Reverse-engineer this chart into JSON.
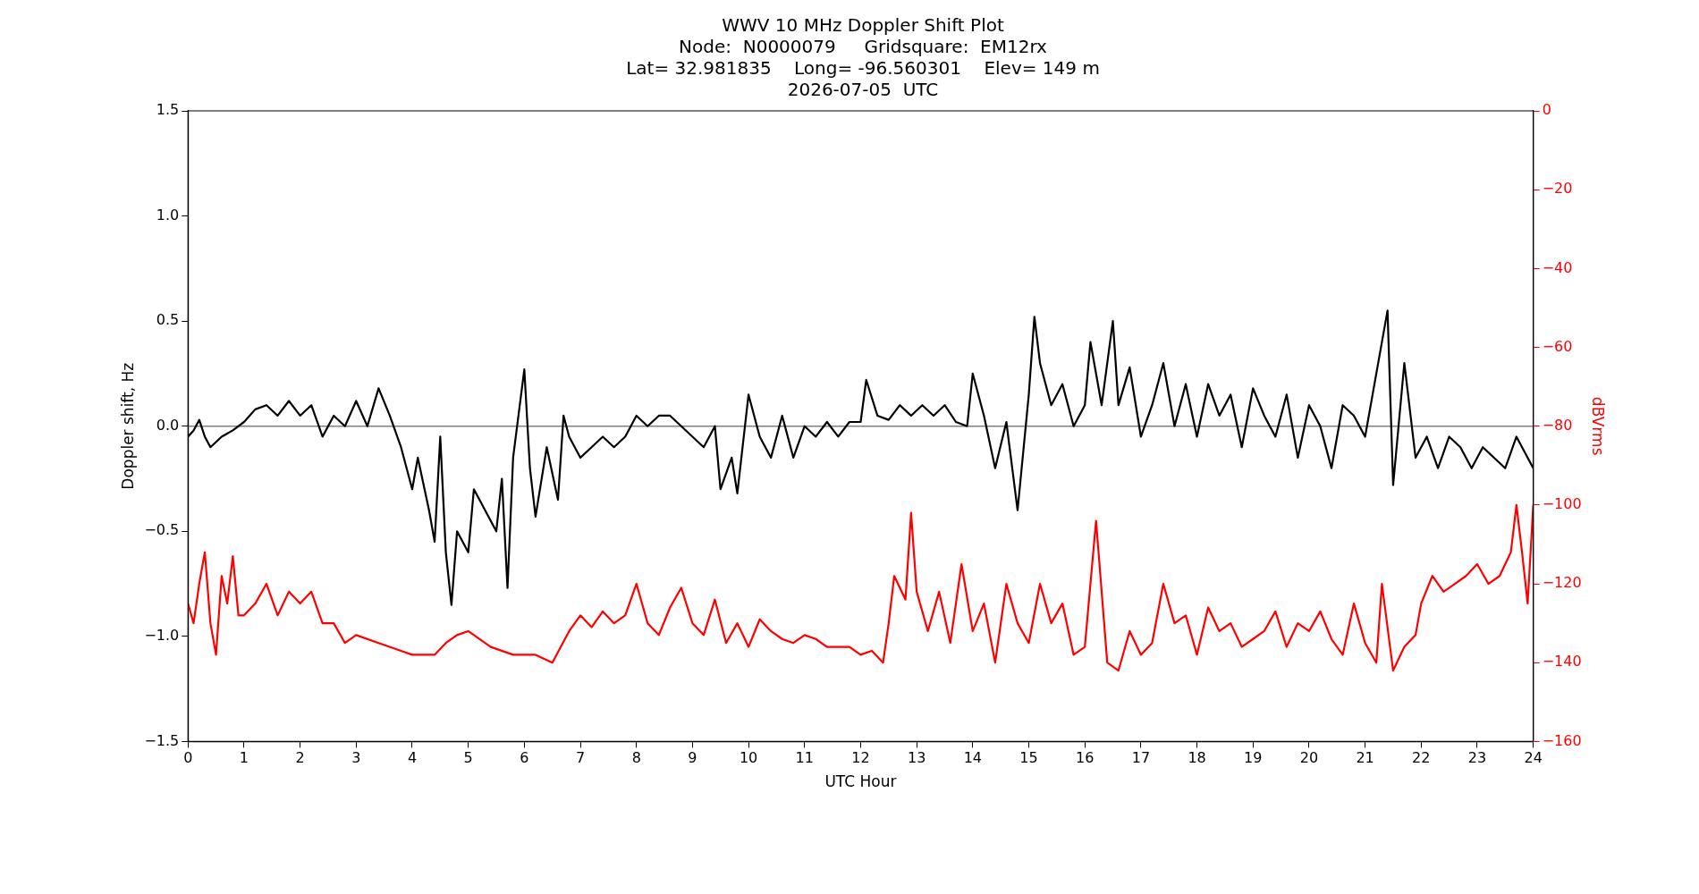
{
  "chart_data": {
    "type": "line",
    "title": "WWV 10 MHz Doppler Shift Plot\nNode:  N0000079     Gridsquare:  EM12rx\nLat= 32.981835    Long= -96.560301    Elev= 149 m\n2026-07-05  UTC",
    "xlabel": "UTC Hour",
    "ylabel": "Doppler shift, Hz",
    "y2label": "dBVrms",
    "xlim": [
      0,
      24
    ],
    "xticks": [
      0,
      1,
      2,
      3,
      4,
      5,
      6,
      7,
      8,
      9,
      10,
      11,
      12,
      13,
      14,
      15,
      16,
      17,
      18,
      19,
      20,
      21,
      22,
      23,
      24
    ],
    "ylim": [
      -1.5,
      1.5
    ],
    "yticks": [
      {
        "value": -1.5,
        "label": "−1.5"
      },
      {
        "value": -1,
        "label": "−1.0"
      },
      {
        "value": -0.5,
        "label": "−0.5"
      },
      {
        "value": 0,
        "label": "0.0"
      },
      {
        "value": 0.5,
        "label": "0.5"
      },
      {
        "value": 1,
        "label": "1.0"
      },
      {
        "value": 1.5,
        "label": "1.5"
      }
    ],
    "y2lim": [
      -160,
      0
    ],
    "y2ticks": [
      {
        "value": -160,
        "label": "−160"
      },
      {
        "value": -140,
        "label": "−140"
      },
      {
        "value": -120,
        "label": "−120"
      },
      {
        "value": -100,
        "label": "−100"
      },
      {
        "value": -80,
        "label": "−80"
      },
      {
        "value": -60,
        "label": "−60"
      },
      {
        "value": -40,
        "label": "−40"
      },
      {
        "value": -20,
        "label": "−20"
      },
      0
    ],
    "grid": false,
    "legend": false,
    "marker": "none",
    "line_style": "solid",
    "ref_lines": [
      {
        "axis": "y",
        "value": 0,
        "color": "#808080"
      }
    ],
    "series": [
      {
        "color": "#000000",
        "axis": "y",
        "x": [
          0,
          0.1,
          0.2,
          0.3,
          0.4,
          0.6,
          0.8,
          1,
          1.2,
          1.4,
          1.6,
          1.8,
          2,
          2.2,
          2.4,
          2.6,
          2.8,
          3,
          3.2,
          3.4,
          3.6,
          3.8,
          4,
          4.1,
          4.3,
          4.4,
          4.5,
          4.6,
          4.7,
          4.8,
          5,
          5.1,
          5.3,
          5.5,
          5.6,
          5.7,
          5.8,
          6,
          6.1,
          6.2,
          6.4,
          6.6,
          6.7,
          6.8,
          7,
          7.2,
          7.4,
          7.6,
          7.8,
          8,
          8.2,
          8.4,
          8.6,
          8.8,
          9,
          9.2,
          9.4,
          9.5,
          9.7,
          9.8,
          10,
          10.2,
          10.4,
          10.6,
          10.8,
          11,
          11.2,
          11.4,
          11.6,
          11.8,
          12,
          12.1,
          12.3,
          12.5,
          12.7,
          12.9,
          13.1,
          13.3,
          13.5,
          13.7,
          13.9,
          14,
          14.2,
          14.4,
          14.6,
          14.8,
          15,
          15.1,
          15.2,
          15.4,
          15.6,
          15.8,
          16,
          16.1,
          16.3,
          16.5,
          16.6,
          16.8,
          17,
          17.2,
          17.4,
          17.6,
          17.8,
          18,
          18.2,
          18.4,
          18.6,
          18.8,
          19,
          19.2,
          19.4,
          19.6,
          19.8,
          20,
          20.2,
          20.4,
          20.6,
          20.8,
          21,
          21.2,
          21.4,
          21.5,
          21.7,
          21.9,
          22.1,
          22.3,
          22.5,
          22.7,
          22.9,
          23.1,
          23.3,
          23.5,
          23.7,
          23.9,
          24
        ],
        "values": [
          -0.05,
          -0.02,
          0.03,
          -0.05,
          -0.1,
          -0.05,
          -0.02,
          0.02,
          0.08,
          0.1,
          0.05,
          0.12,
          0.05,
          0.1,
          -0.05,
          0.05,
          0,
          0.12,
          0,
          0.18,
          0.05,
          -0.1,
          -0.3,
          -0.15,
          -0.4,
          -0.55,
          -0.05,
          -0.6,
          -0.85,
          -0.5,
          -0.6,
          -0.3,
          -0.4,
          -0.5,
          -0.25,
          -0.77,
          -0.15,
          0.27,
          -0.2,
          -0.43,
          -0.1,
          -0.35,
          0.05,
          -0.05,
          -0.15,
          -0.1,
          -0.05,
          -0.1,
          -0.05,
          0.05,
          0,
          0.05,
          0.05,
          0,
          -0.05,
          -0.1,
          0,
          -0.3,
          -0.15,
          -0.32,
          0.15,
          -0.05,
          -0.15,
          0.05,
          -0.15,
          0,
          -0.05,
          0.02,
          -0.05,
          0.02,
          0.02,
          0.22,
          0.05,
          0.03,
          0.1,
          0.05,
          0.1,
          0.05,
          0.1,
          0.02,
          0,
          0.25,
          0.05,
          -0.2,
          0.02,
          -0.4,
          0.15,
          0.52,
          0.3,
          0.1,
          0.2,
          0,
          0.1,
          0.4,
          0.1,
          0.5,
          0.1,
          0.28,
          -0.05,
          0.1,
          0.3,
          0,
          0.2,
          -0.05,
          0.2,
          0.05,
          0.15,
          -0.1,
          0.18,
          0.05,
          -0.05,
          0.15,
          -0.15,
          0.1,
          0,
          -0.2,
          0.1,
          0.05,
          -0.05,
          0.25,
          0.55,
          -0.28,
          0.3,
          -0.15,
          -0.05,
          -0.2,
          -0.05,
          -0.1,
          -0.2,
          -0.1,
          -0.15,
          -0.2,
          -0.05,
          -0.15,
          -0.2
        ]
      },
      {
        "color": "#ff0000",
        "axis": "y2",
        "x": [
          0,
          0.1,
          0.2,
          0.3,
          0.4,
          0.5,
          0.6,
          0.7,
          0.8,
          0.9,
          1,
          1.2,
          1.4,
          1.6,
          1.8,
          2,
          2.2,
          2.4,
          2.6,
          2.8,
          3,
          3.4,
          3.8,
          4,
          4.4,
          4.6,
          4.8,
          5,
          5.4,
          5.8,
          6.2,
          6.5,
          6.8,
          7,
          7.2,
          7.4,
          7.6,
          7.8,
          8,
          8.2,
          8.4,
          8.6,
          8.8,
          9,
          9.2,
          9.4,
          9.6,
          9.8,
          10,
          10.2,
          10.4,
          10.6,
          10.8,
          11,
          11.2,
          11.4,
          11.6,
          11.8,
          12,
          12.2,
          12.4,
          12.5,
          12.6,
          12.8,
          12.9,
          13,
          13.2,
          13.4,
          13.6,
          13.8,
          14,
          14.2,
          14.4,
          14.6,
          14.8,
          15,
          15.2,
          15.4,
          15.6,
          15.8,
          16,
          16.2,
          16.4,
          16.6,
          16.8,
          17,
          17.2,
          17.4,
          17.6,
          17.8,
          18,
          18.2,
          18.4,
          18.6,
          18.8,
          19,
          19.2,
          19.4,
          19.6,
          19.8,
          20,
          20.2,
          20.4,
          20.6,
          20.8,
          21,
          21.2,
          21.3,
          21.5,
          21.7,
          21.9,
          22,
          22.2,
          22.4,
          22.6,
          22.8,
          23,
          23.2,
          23.4,
          23.6,
          23.7,
          23.8,
          23.9,
          24
        ],
        "values": [
          -125,
          -130,
          -120,
          -112,
          -130,
          -138,
          -118,
          -125,
          -113,
          -128,
          -128,
          -125,
          -120,
          -128,
          -122,
          -125,
          -122,
          -130,
          -130,
          -135,
          -133,
          -135,
          -137,
          -138,
          -138,
          -135,
          -133,
          -132,
          -136,
          -138,
          -138,
          -140,
          -132,
          -128,
          -131,
          -127,
          -130,
          -128,
          -120,
          -130,
          -133,
          -126,
          -121,
          -130,
          -133,
          -124,
          -135,
          -130,
          -136,
          -129,
          -132,
          -134,
          -135,
          -133,
          -134,
          -136,
          -136,
          -136,
          -138,
          -137,
          -140,
          -130,
          -118,
          -124,
          -102,
          -122,
          -132,
          -122,
          -135,
          -115,
          -132,
          -125,
          -140,
          -120,
          -130,
          -135,
          -120,
          -130,
          -125,
          -138,
          -136,
          -104,
          -140,
          -142,
          -132,
          -138,
          -135,
          -120,
          -130,
          -128,
          -138,
          -126,
          -132,
          -130,
          -136,
          -134,
          -132,
          -127,
          -136,
          -130,
          -132,
          -127,
          -134,
          -138,
          -125,
          -135,
          -140,
          -120,
          -142,
          -136,
          -133,
          -125,
          -118,
          -122,
          -120,
          -118,
          -115,
          -120,
          -118,
          -112,
          -100,
          -112,
          -125,
          -100
        ]
      }
    ]
  }
}
